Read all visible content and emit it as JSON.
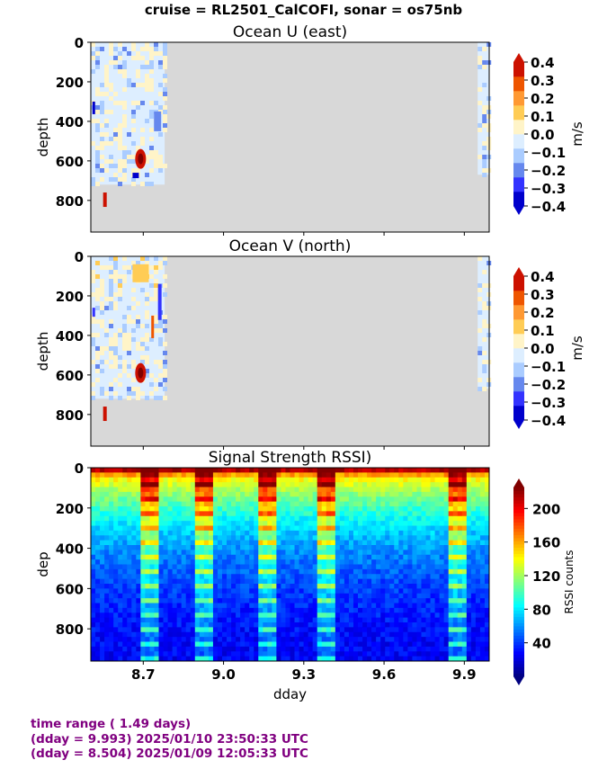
{
  "suptitle": "cruise = RL2501_CalCOFI,  sonar = os75nb",
  "footer": [
    "time range ( 1.49 days)",
    "(dday = 9.993) 2025/01/10 23:50:33 UTC",
    "(dday = 8.504) 2025/01/09 12:05:33 UTC"
  ],
  "chart_data": [
    {
      "type": "heatmap",
      "title": "Ocean U (east)",
      "ylabel": "depth",
      "xlabel": "",
      "xlim": [
        8.504,
        9.993
      ],
      "ylim": [
        960,
        0
      ],
      "yticks": [
        0,
        200,
        400,
        600,
        800
      ],
      "xticks": [
        8.7,
        9.0,
        9.3,
        9.6,
        9.9
      ],
      "colorbar": {
        "label": "m/s",
        "ticks": [
          "0.4",
          "0.3",
          "0.2",
          "0.1",
          "0.0",
          "−0.1",
          "−0.2",
          "−0.3",
          "−0.4"
        ],
        "range": [
          -0.4,
          0.4
        ],
        "colors": [
          "#0000cc",
          "#3333ff",
          "#6688ee",
          "#aaccff",
          "#ddeeff",
          "#fff4c8",
          "#ffcc55",
          "#ff9933",
          "#ee5500",
          "#cc1100"
        ],
        "extend": "both"
      },
      "nodata_color": "#d8d8d8",
      "data_segments": [
        {
          "x": [
            8.504,
            8.78
          ],
          "depth_max": 720
        },
        {
          "x": [
            9.95,
            9.993
          ],
          "depth_max": 670
        }
      ]
    },
    {
      "type": "heatmap",
      "title": "Ocean V (north)",
      "ylabel": "depth",
      "xlabel": "",
      "xlim": [
        8.504,
        9.993
      ],
      "ylim": [
        960,
        0
      ],
      "yticks": [
        0,
        200,
        400,
        600,
        800
      ],
      "xticks": [
        8.7,
        9.0,
        9.3,
        9.6,
        9.9
      ],
      "colorbar": {
        "label": "m/s",
        "ticks": [
          "0.4",
          "0.3",
          "0.2",
          "0.1",
          "0.0",
          "−0.1",
          "−0.2",
          "−0.3",
          "−0.4"
        ],
        "range": [
          -0.4,
          0.4
        ],
        "colors": [
          "#0000cc",
          "#3333ff",
          "#6688ee",
          "#aaccff",
          "#ddeeff",
          "#fff4c8",
          "#ffcc55",
          "#ff9933",
          "#ee5500",
          "#cc1100"
        ],
        "extend": "both"
      },
      "nodata_color": "#d8d8d8",
      "data_segments": [
        {
          "x": [
            8.504,
            8.78
          ],
          "depth_max": 720
        },
        {
          "x": [
            9.95,
            9.993
          ],
          "depth_max": 670
        }
      ]
    },
    {
      "type": "heatmap",
      "title": "Signal Strength RSSI)",
      "ylabel": "dep",
      "xlabel": "dday",
      "xlim": [
        8.504,
        9.993
      ],
      "ylim": [
        960,
        0
      ],
      "yticks": [
        0,
        200,
        400,
        600,
        800
      ],
      "xticks": [
        8.7,
        9.0,
        9.3,
        9.6,
        9.9
      ],
      "colorbar": {
        "label": "RSSI counts",
        "ticks": [
          "200",
          "160",
          "120",
          "80",
          "40"
        ],
        "range": [
          0,
          225
        ],
        "colormap": "jet"
      }
    }
  ]
}
